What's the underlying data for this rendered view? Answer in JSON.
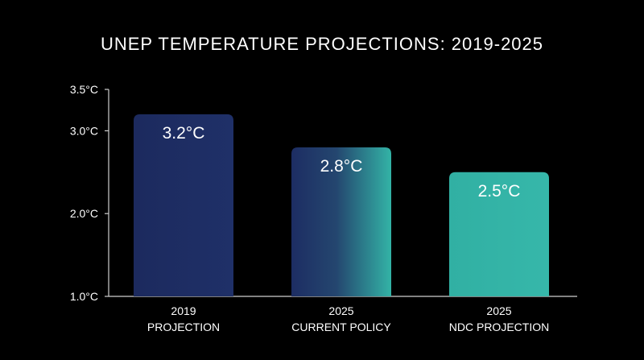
{
  "chart_data": {
    "type": "bar",
    "title": "UNEP TEMPERATURE PROJECTIONS: 2019-2025",
    "categories": [
      [
        "2019",
        "PROJECTION"
      ],
      [
        "2025",
        "CURRENT POLICY"
      ],
      [
        "2025",
        "NDC PROJECTION"
      ]
    ],
    "values": [
      3.2,
      2.8,
      2.5
    ],
    "value_labels": [
      "3.2°C",
      "2.8°C",
      "2.5°C"
    ],
    "yticks": [
      {
        "value": 1.0,
        "label": "1.0°C"
      },
      {
        "value": 2.0,
        "label": "2.0°C"
      },
      {
        "value": 3.0,
        "label": "3.0°C"
      },
      {
        "value": 3.5,
        "label": "3.5°C"
      }
    ],
    "ylim": [
      1.0,
      3.5
    ],
    "xlabel": "",
    "ylabel": "",
    "grid": false,
    "colors": {
      "background": "#000000",
      "axis": "#cfcfcf",
      "text": "#ffffff",
      "bar_dark": "#1c2a5e",
      "bar_teal": "#33b3a6"
    }
  }
}
